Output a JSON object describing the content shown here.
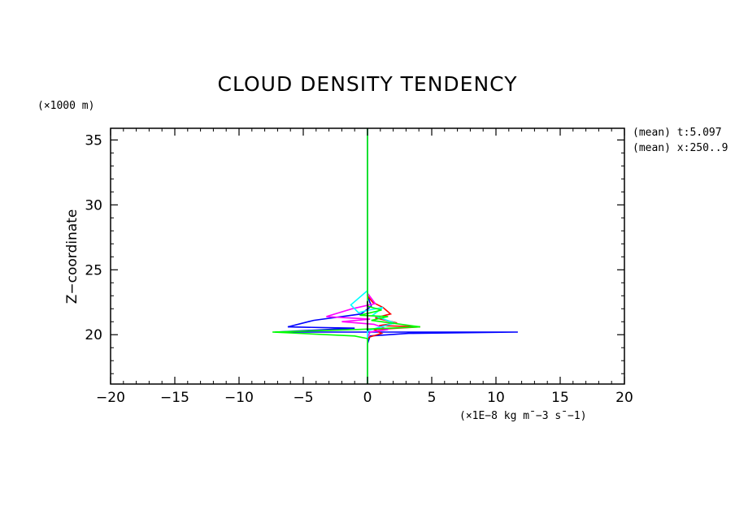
{
  "chart_data": {
    "type": "line",
    "title": "CLOUD DENSITY TENDENCY",
    "y_unit_label": "(×1000 m)",
    "xlabel": "(×1E−8 kg m¯−3 s¯−1)",
    "ylabel": "Z−coordinate",
    "xlim": [
      -20,
      20
    ],
    "ylim": [
      16.2,
      35.9
    ],
    "x_ticks": [
      -20,
      -15,
      -10,
      -5,
      0,
      5,
      10,
      15,
      20
    ],
    "x_tick_labels": [
      "−20",
      "−15",
      "−10",
      "−5",
      "0",
      "5",
      "10",
      "15",
      "20"
    ],
    "y_ticks": [
      20,
      25,
      30,
      35
    ],
    "y_tick_labels": [
      "20",
      "25",
      "30",
      "35"
    ],
    "annotations": [
      "(mean) t:5.097",
      "(mean) x:250..9"
    ],
    "grid": false,
    "legend": "none",
    "series": [
      {
        "color": "#0000ff",
        "points": [
          [
            0,
            35.9
          ],
          [
            0,
            23
          ],
          [
            0.3,
            22.2
          ],
          [
            -0.5,
            21.6
          ],
          [
            -4.2,
            21.1
          ],
          [
            -6.2,
            20.6
          ],
          [
            -1,
            20.5
          ],
          [
            -7.2,
            20.2
          ],
          [
            11.7,
            20.2
          ],
          [
            3.2,
            20.1
          ],
          [
            0.2,
            19.9
          ],
          [
            0,
            19.3
          ],
          [
            0,
            16.2
          ]
        ]
      },
      {
        "color": "#ff0000",
        "points": [
          [
            0,
            23
          ],
          [
            0.4,
            22.5
          ],
          [
            1.2,
            22.1
          ],
          [
            1.8,
            21.6
          ],
          [
            0.6,
            21.3
          ],
          [
            2.3,
            20.9
          ],
          [
            0.9,
            20.7
          ],
          [
            4.1,
            20.6
          ],
          [
            0.5,
            20.4
          ],
          [
            1.1,
            20.1
          ],
          [
            0.1,
            19.8
          ],
          [
            0,
            19.6
          ]
        ]
      },
      {
        "color": "#ff00ff",
        "points": [
          [
            0,
            23.2
          ],
          [
            0.6,
            22.4
          ],
          [
            -1.2,
            22
          ],
          [
            -3.2,
            21.4
          ],
          [
            0.2,
            21.2
          ],
          [
            -2,
            21
          ],
          [
            0.5,
            20.8
          ],
          [
            1.6,
            20.4
          ],
          [
            0.2,
            20.2
          ],
          [
            0,
            19.8
          ]
        ]
      },
      {
        "color": "#00ffff",
        "points": [
          [
            0,
            23.4
          ],
          [
            -1.3,
            22.3
          ],
          [
            -0.7,
            21.7
          ],
          [
            0.1,
            21.9
          ],
          [
            1.2,
            22.1
          ],
          [
            0.4,
            21.5
          ],
          [
            2.1,
            20.9
          ],
          [
            0,
            20.3
          ],
          [
            0,
            19.6
          ]
        ]
      },
      {
        "color": "#00ff00",
        "points": [
          [
            0,
            35.9
          ],
          [
            0,
            22.2
          ],
          [
            1.1,
            21.9
          ],
          [
            -0.6,
            21.5
          ],
          [
            1.6,
            21.4
          ],
          [
            0.3,
            21.1
          ],
          [
            4.1,
            20.6
          ],
          [
            -0.8,
            20.4
          ],
          [
            -7.4,
            20.2
          ],
          [
            -1,
            19.9
          ],
          [
            0,
            19.7
          ],
          [
            0,
            16.2
          ]
        ]
      },
      {
        "color": "#000000",
        "points": [
          [
            0,
            22.6
          ],
          [
            0,
            20.3
          ]
        ]
      }
    ]
  }
}
